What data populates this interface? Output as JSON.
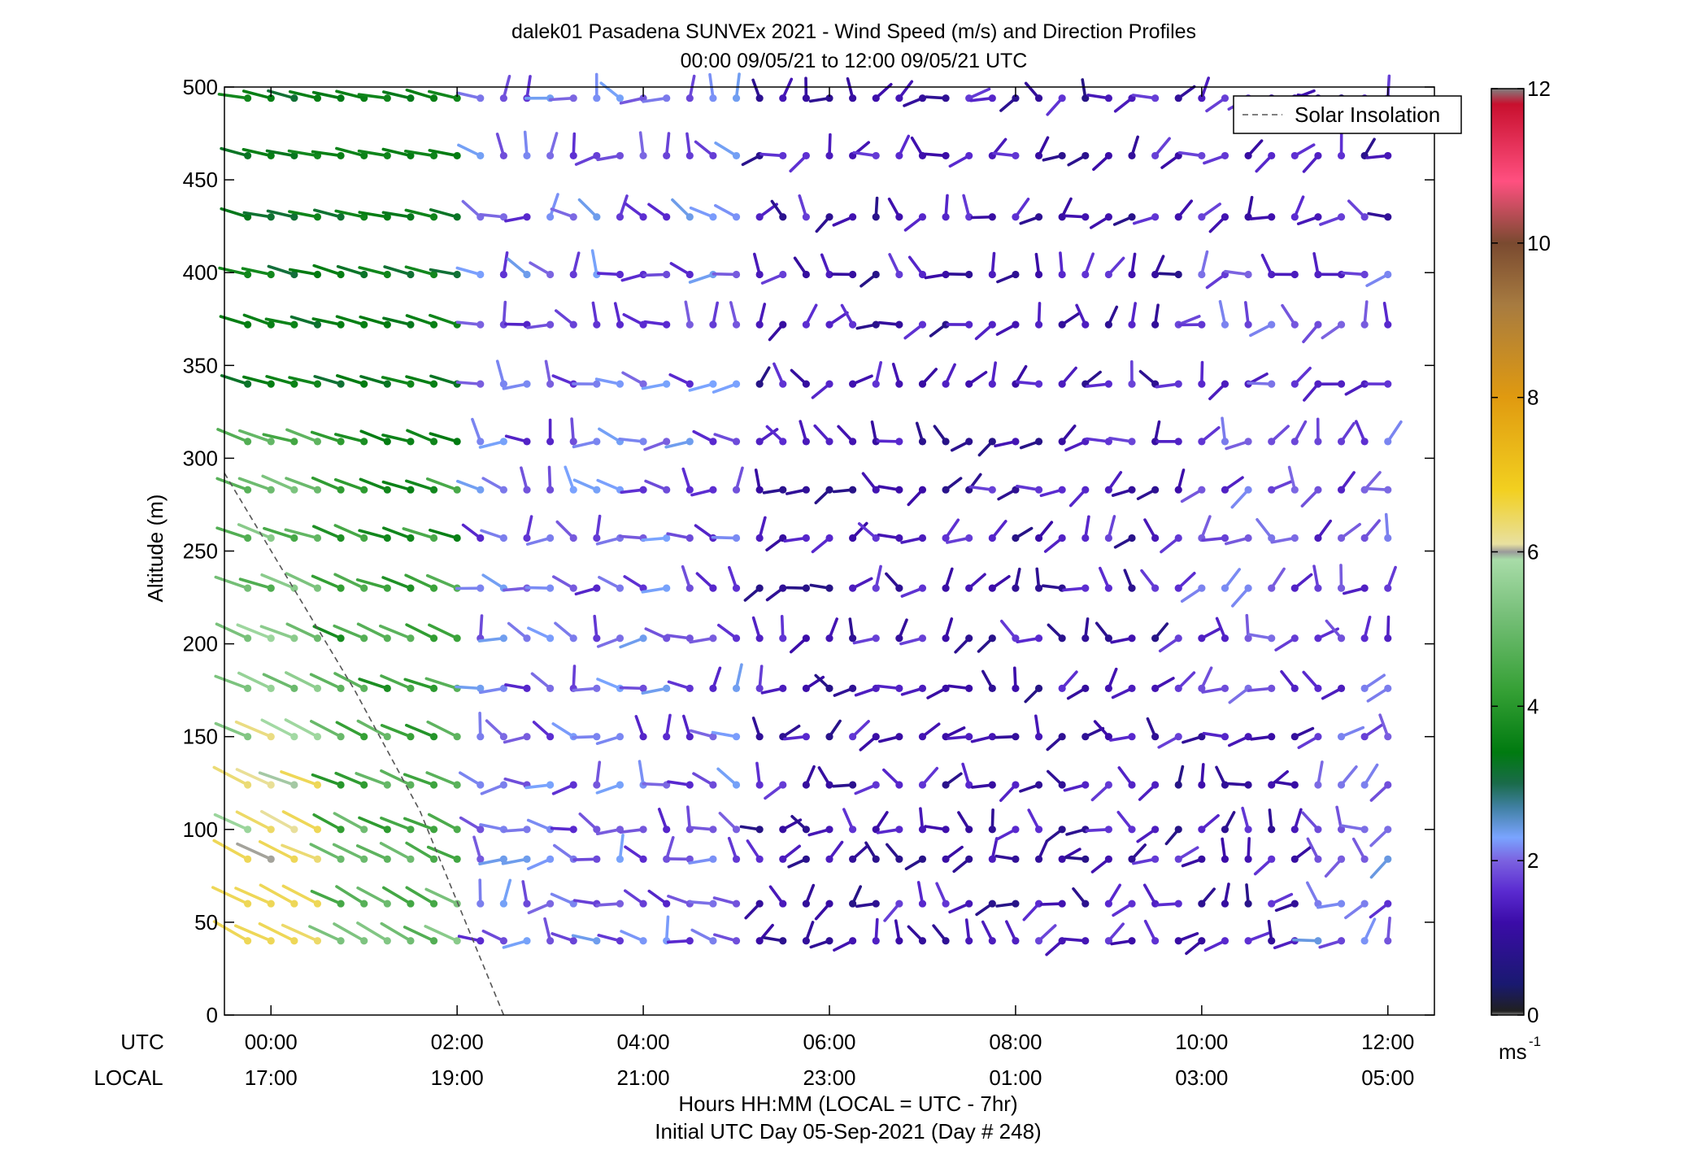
{
  "chart_data": {
    "type": "wind-barb-profile",
    "title": "dalek01 Pasadena SUNVEx 2021 - Wind Speed (m/s) and Direction Profiles",
    "subtitle": "00:00 09/05/21 to 12:00 09/05/21  UTC",
    "ylabel": "Altitude (m)",
    "xlabel": "Hours HH:MM  (LOCAL = UTC - 7hr)",
    "xlabel2": "Initial UTC Day 05-Sep-2021 (Day # 248)",
    "utc_row_label": "UTC",
    "local_row_label": "LOCAL",
    "xlim": [
      -0.5,
      12.5
    ],
    "ylim": [
      0,
      500
    ],
    "x_ticks": [
      0,
      2,
      4,
      6,
      8,
      10,
      12
    ],
    "x_tick_labels_utc": [
      "00:00",
      "02:00",
      "04:00",
      "06:00",
      "08:00",
      "10:00",
      "12:00"
    ],
    "x_tick_labels_local": [
      "17:00",
      "19:00",
      "21:00",
      "23:00",
      "01:00",
      "03:00",
      "05:00"
    ],
    "y_ticks": [
      0,
      50,
      100,
      150,
      200,
      250,
      300,
      350,
      400,
      450,
      500
    ],
    "altitudes": [
      40,
      60,
      84,
      100,
      124,
      150,
      176,
      203,
      230,
      257,
      283,
      309,
      340,
      372,
      399,
      430,
      463,
      494
    ],
    "time_step_hours": 0.25,
    "time_start_hours": -0.25,
    "time_end_hours": 12.0,
    "legend": {
      "label": "Solar Insolation",
      "position": "top-right"
    },
    "solar_insolation_line": {
      "x": [
        -0.5,
        0.9,
        1.6,
        2.5
      ],
      "y": [
        292,
        175,
        110,
        0
      ],
      "color": "#555555"
    },
    "colorbar": {
      "unit_label": "ms",
      "unit_exponent": "-1",
      "range": [
        0,
        12
      ],
      "ticks": [
        0,
        2,
        4,
        6,
        8,
        10,
        12
      ],
      "stops": [
        {
          "v": 0.0,
          "c": "#808080"
        },
        {
          "v": 0.05,
          "c": "#202020"
        },
        {
          "v": 0.4,
          "c": "#191970"
        },
        {
          "v": 1.2,
          "c": "#3b0ca8"
        },
        {
          "v": 1.6,
          "c": "#5a2ad0"
        },
        {
          "v": 2.0,
          "c": "#7b62e0"
        },
        {
          "v": 2.3,
          "c": "#7aa4ff"
        },
        {
          "v": 2.7,
          "c": "#3f7fa0"
        },
        {
          "v": 3.0,
          "c": "#1a6b4a"
        },
        {
          "v": 3.4,
          "c": "#007a10"
        },
        {
          "v": 4.2,
          "c": "#35a035"
        },
        {
          "v": 5.2,
          "c": "#78c07a"
        },
        {
          "v": 5.9,
          "c": "#a8dca8"
        },
        {
          "v": 6.0,
          "c": "#9a9a9a"
        },
        {
          "v": 6.1,
          "c": "#e8e0a0"
        },
        {
          "v": 6.8,
          "c": "#f2d020"
        },
        {
          "v": 8.0,
          "c": "#e09a10"
        },
        {
          "v": 9.2,
          "c": "#a77b40"
        },
        {
          "v": 10.0,
          "c": "#7a4a30"
        },
        {
          "v": 10.8,
          "c": "#ff5080"
        },
        {
          "v": 11.8,
          "c": "#c8102e"
        },
        {
          "v": 12.0,
          "c": "#808080"
        }
      ]
    }
  }
}
